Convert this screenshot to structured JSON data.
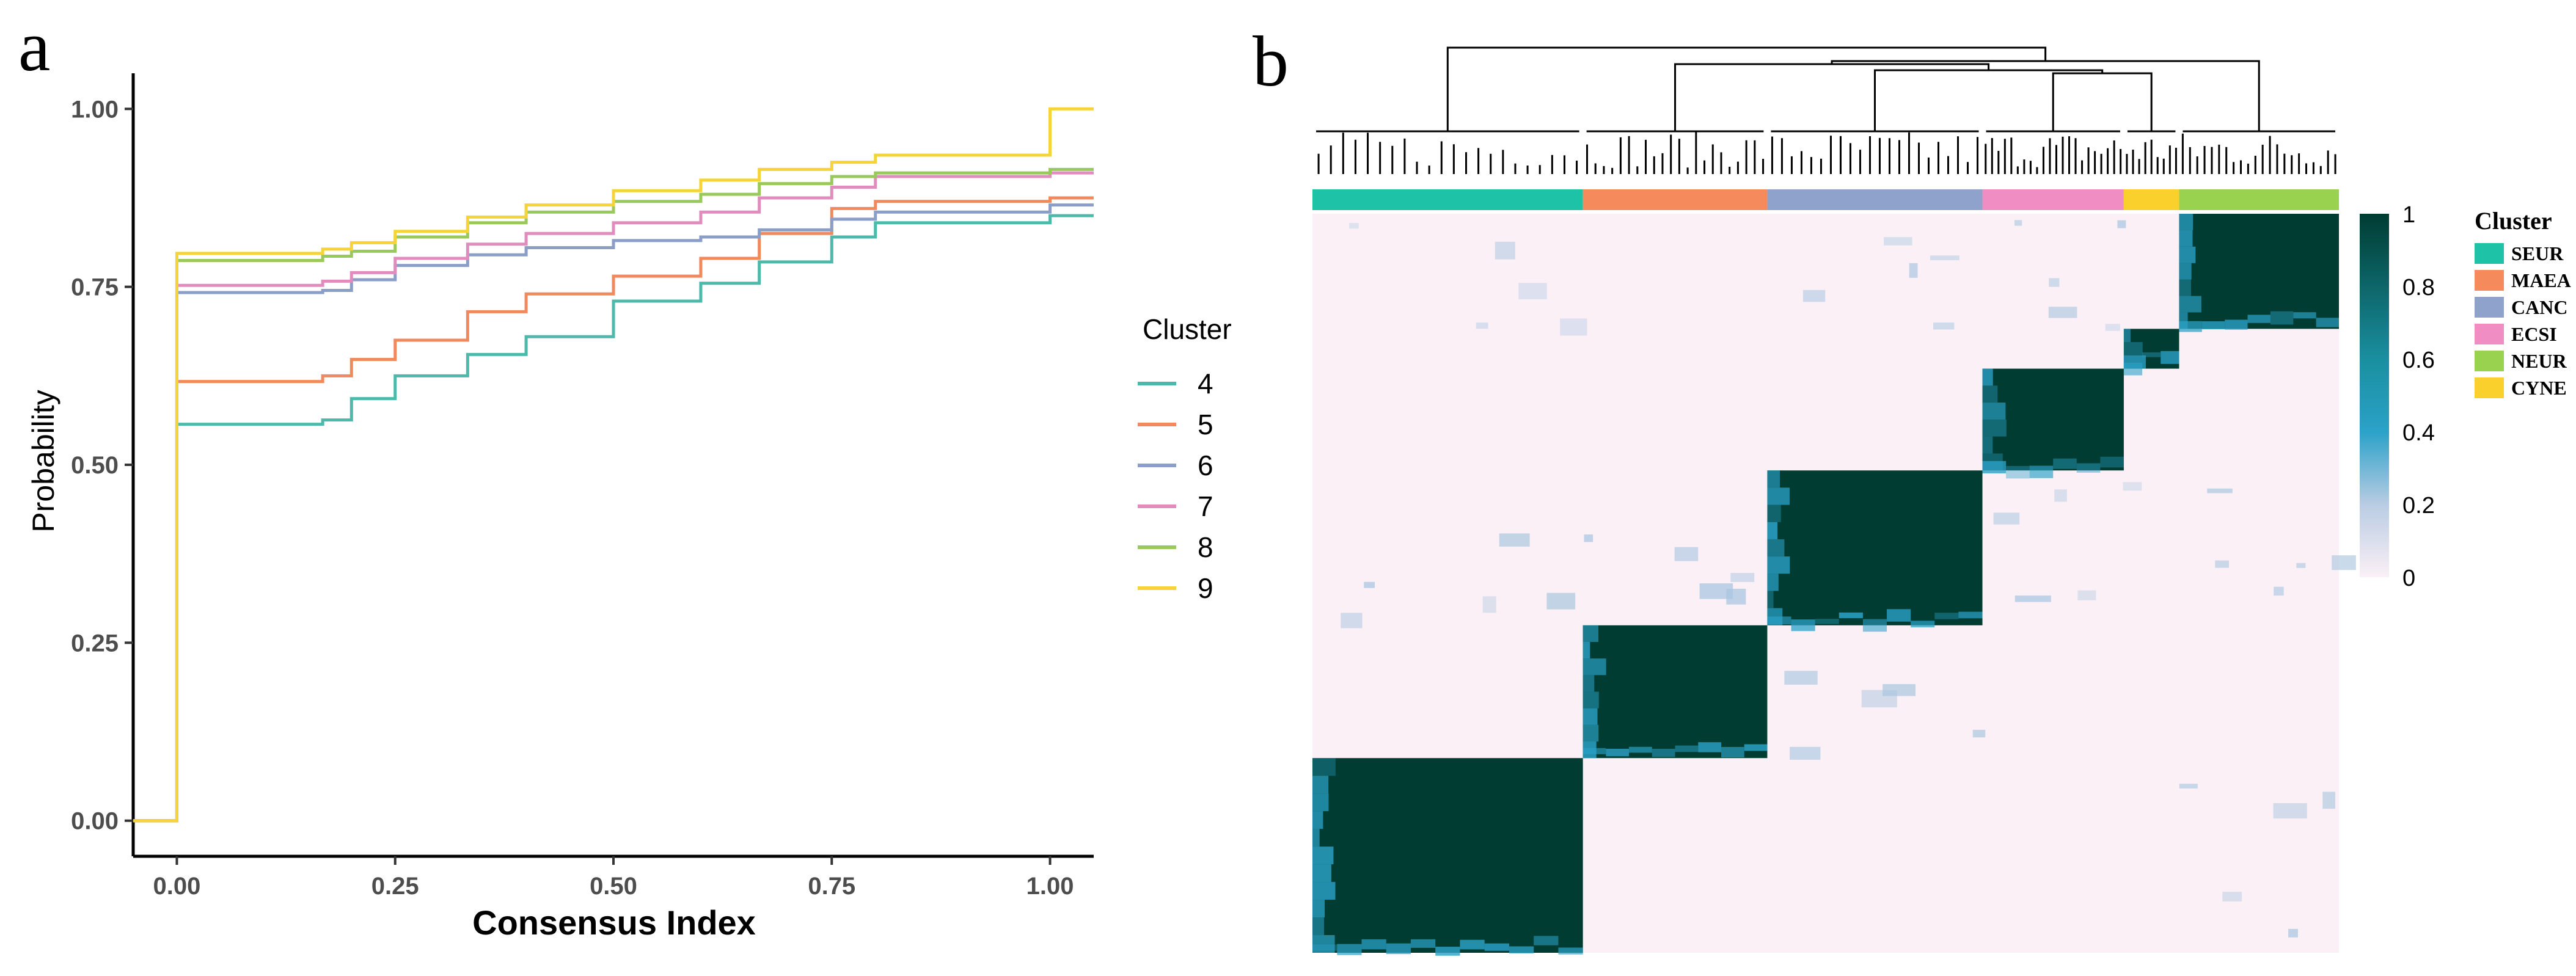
{
  "figure": {
    "panel_a_label": "a",
    "panel_b_label": "b",
    "colors": {
      "axis": "#000000",
      "heat_low": "#FBF0F6",
      "heat_mid": "#2BA2C8",
      "heat_high": "#003C32"
    }
  },
  "chart_data": [
    {
      "type": "line",
      "panel": "a",
      "title": "",
      "xlabel": "Consensus Index",
      "ylabel": "Probability",
      "xlim": [
        -0.05,
        1.05
      ],
      "ylim": [
        -0.05,
        1.05
      ],
      "x_ticks": [
        "0.00",
        "0.25",
        "0.50",
        "0.75",
        "1.00"
      ],
      "y_ticks": [
        "0.00",
        "0.25",
        "0.50",
        "0.75",
        "1.00"
      ],
      "grid": false,
      "legend_title": "Cluster",
      "legend_position": "right",
      "step": true,
      "series": [
        {
          "name": "4",
          "color": "#4CB9AA",
          "x": [
            0.167,
            0.2,
            0.25,
            0.333,
            0.4,
            0.5,
            0.6,
            0.667,
            0.75,
            0.8,
            1.0
          ],
          "y": [
            0.563,
            0.593,
            0.625,
            0.655,
            0.68,
            0.73,
            0.755,
            0.785,
            0.82,
            0.84,
            0.85
          ]
        },
        {
          "name": "5",
          "color": "#F0895E",
          "x": [
            0.167,
            0.2,
            0.25,
            0.333,
            0.4,
            0.5,
            0.6,
            0.667,
            0.75,
            0.8,
            1.0
          ],
          "y": [
            0.625,
            0.648,
            0.675,
            0.715,
            0.74,
            0.765,
            0.79,
            0.825,
            0.86,
            0.87,
            0.875
          ]
        },
        {
          "name": "6",
          "color": "#8B9EC8",
          "x": [
            0.167,
            0.2,
            0.25,
            0.333,
            0.4,
            0.5,
            0.6,
            0.667,
            0.75,
            0.8,
            1.0
          ],
          "y": [
            0.745,
            0.76,
            0.78,
            0.795,
            0.805,
            0.815,
            0.82,
            0.83,
            0.845,
            0.855,
            0.865
          ]
        },
        {
          "name": "7",
          "color": "#E08DBE",
          "x": [
            0.167,
            0.2,
            0.25,
            0.333,
            0.4,
            0.5,
            0.6,
            0.667,
            0.75,
            0.8,
            1.0
          ],
          "y": [
            0.758,
            0.77,
            0.79,
            0.81,
            0.825,
            0.84,
            0.855,
            0.875,
            0.89,
            0.905,
            0.91
          ]
        },
        {
          "name": "8",
          "color": "#99C95A",
          "x": [
            0.167,
            0.2,
            0.25,
            0.333,
            0.4,
            0.5,
            0.6,
            0.667,
            0.75,
            0.8,
            1.0
          ],
          "y": [
            0.793,
            0.8,
            0.82,
            0.84,
            0.855,
            0.87,
            0.88,
            0.895,
            0.905,
            0.91,
            0.915
          ]
        },
        {
          "name": "9",
          "color": "#F5D43A",
          "x": [
            0.167,
            0.2,
            0.25,
            0.333,
            0.4,
            0.5,
            0.6,
            0.667,
            0.75,
            0.8,
            1.0
          ],
          "y": [
            0.803,
            0.812,
            0.828,
            0.848,
            0.865,
            0.885,
            0.9,
            0.915,
            0.925,
            0.935,
            1.0
          ]
        }
      ],
      "initial": {
        "4": 0.557,
        "5": 0.617,
        "6": 0.742,
        "7": 0.752,
        "8": 0.787,
        "9": 0.797
      }
    },
    {
      "type": "heatmap",
      "panel": "b",
      "title": "",
      "color_scale": {
        "min": 0,
        "max": 1,
        "ticks": [
          "1",
          "0.8",
          "0.6",
          "0.4",
          "0.2",
          "0"
        ]
      },
      "legend_title": "Cluster",
      "clusters": [
        {
          "name": "SEUR",
          "color": "#1EC2A6",
          "size": 44
        },
        {
          "name": "MAEA",
          "color": "#F58A5C",
          "size": 30
        },
        {
          "name": "CANC",
          "color": "#8FA2CC",
          "size": 35
        },
        {
          "name": "ECSI",
          "color": "#F08EC3",
          "size": 23
        },
        {
          "name": "CYNE",
          "color": "#FAD02D",
          "size": 9
        },
        {
          "name": "NEUR",
          "color": "#98D24F",
          "size": 26
        }
      ],
      "row_order": [
        "NEUR",
        "CYNE",
        "ECSI",
        "CANC",
        "MAEA",
        "SEUR"
      ],
      "consensus_within": 0.95,
      "dendrogram": true
    }
  ]
}
